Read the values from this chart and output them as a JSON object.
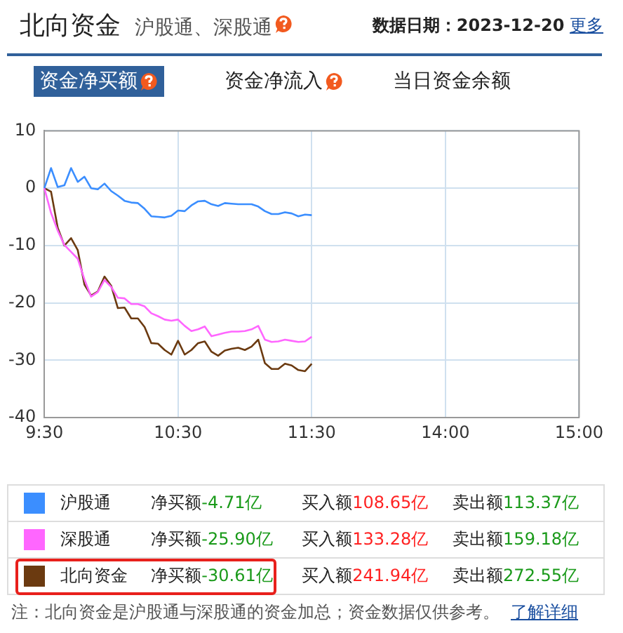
{
  "chart_data": {
    "type": "line",
    "title": "北向资金",
    "subtitle": "沪股通、深股通",
    "annotations": [
      "数据日期：2023-12-20",
      "更多",
      "资金净买额",
      "资金净流入",
      "当日资金余额",
      "净买额-4.71亿",
      "买入额108.65亿",
      "卖出额113.37亿",
      "净买额-25.90亿",
      "买入额133.28亿",
      "卖出额159.18亿",
      "净买额-30.61亿",
      "买入额241.94亿",
      "卖出额272.55亿",
      "注：北向资金是沪股通与深股通的资金加总；资金数据仅供参考。",
      "了解详细"
    ],
    "categories": [
      "9:30",
      null,
      null,
      null,
      null,
      null,
      null,
      null,
      null,
      null,
      null,
      null,
      null,
      null,
      null,
      null,
      null,
      null,
      null,
      null,
      "10:30",
      null,
      null,
      null,
      null,
      null,
      null,
      null,
      null,
      null,
      null,
      null,
      null,
      null,
      null,
      null,
      null,
      null,
      null,
      null,
      "11:30",
      null,
      null,
      null,
      null,
      null,
      null,
      null,
      null,
      null,
      null,
      null,
      null,
      null,
      null,
      null,
      null,
      null,
      null,
      null,
      "14:00",
      null,
      null,
      null,
      null,
      null,
      null,
      null,
      null,
      null,
      null,
      null,
      null,
      null,
      null,
      null,
      null,
      null,
      null,
      null,
      "15:00"
    ],
    "ylim": [
      -40,
      10
    ],
    "yticks": [
      -40,
      -30,
      -20,
      -10,
      0,
      10
    ],
    "grid": true,
    "legend": "bottom",
    "marker": "none",
    "line_style": "solid",
    "series": [
      {
        "name": "沪股通",
        "color": "#3b8eff",
        "values": [
          0,
          3.5,
          0.2,
          0.5,
          3.5,
          1.1,
          2.0,
          0,
          -0.2,
          0.8,
          -0.5,
          -1.3,
          -2.2,
          -2.5,
          -2.6,
          -3.6,
          -4.9,
          -5.0,
          -5.1,
          -4.8,
          -3.9,
          -4.0,
          -3.0,
          -2.3,
          -2.2,
          -2.8,
          -3.1,
          -2.6,
          -2.7,
          -2.8,
          -2.8,
          -2.8,
          -3.2,
          -4.0,
          -4.5,
          -4.5,
          -4.2,
          -4.4,
          -4.9,
          -4.6,
          -4.7,
          null,
          null,
          null,
          null,
          null,
          null,
          null,
          null,
          null,
          null,
          null,
          null,
          null,
          null,
          null,
          null,
          null,
          null,
          null,
          null,
          null,
          null,
          null,
          null,
          null,
          null,
          null,
          null,
          null,
          null,
          null,
          null,
          null,
          null,
          null,
          null,
          null,
          null,
          null,
          null
        ]
      },
      {
        "name": "深股通",
        "color": "#ff66ff",
        "values": [
          0,
          -4.3,
          -7.4,
          -9.9,
          -11.1,
          -12.3,
          -15.9,
          -18.9,
          -18.1,
          -16.0,
          -17.2,
          -19.1,
          -19.2,
          -20.2,
          -20.2,
          -20.6,
          -21.8,
          -22.3,
          -22.9,
          -23.1,
          -22.9,
          -24.0,
          -24.9,
          -24.6,
          -24.1,
          -25.8,
          -25.5,
          -25.2,
          -25.0,
          -25.0,
          -24.9,
          -24.6,
          -24.0,
          -26.4,
          -26.8,
          -26.7,
          -26.4,
          -26.6,
          -26.8,
          -26.7,
          -25.9,
          null,
          null,
          null,
          null,
          null,
          null,
          null,
          null,
          null,
          null,
          null,
          null,
          null,
          null,
          null,
          null,
          null,
          null,
          null,
          null,
          null,
          null,
          null,
          null,
          null,
          null,
          null,
          null,
          null,
          null,
          null,
          null,
          null,
          null,
          null,
          null,
          null,
          null,
          null,
          null
        ]
      },
      {
        "name": "北向资金",
        "color": "#6b3a10",
        "values": [
          0,
          -0.6,
          -6.9,
          -10.0,
          -8.7,
          -10.8,
          -16.8,
          -18.7,
          -18.0,
          -15.4,
          -17.0,
          -20.9,
          -20.8,
          -22.7,
          -22.7,
          -24.2,
          -27.0,
          -27.1,
          -28.2,
          -29.0,
          -26.6,
          -29.0,
          -28.2,
          -27.0,
          -26.7,
          -28.5,
          -29.2,
          -28.3,
          -28.0,
          -27.8,
          -28.2,
          -27.6,
          -26.4,
          -30.5,
          -31.5,
          -31.5,
          -30.6,
          -30.9,
          -31.7,
          -31.9,
          -30.6,
          null,
          null,
          null,
          null,
          null,
          null,
          null,
          null,
          null,
          null,
          null,
          null,
          null,
          null,
          null,
          null,
          null,
          null,
          null,
          null,
          null,
          null,
          null,
          null,
          null,
          null,
          null,
          null,
          null,
          null,
          null,
          null,
          null,
          null,
          null,
          null,
          null,
          null,
          null,
          null
        ]
      }
    ]
  }
}
